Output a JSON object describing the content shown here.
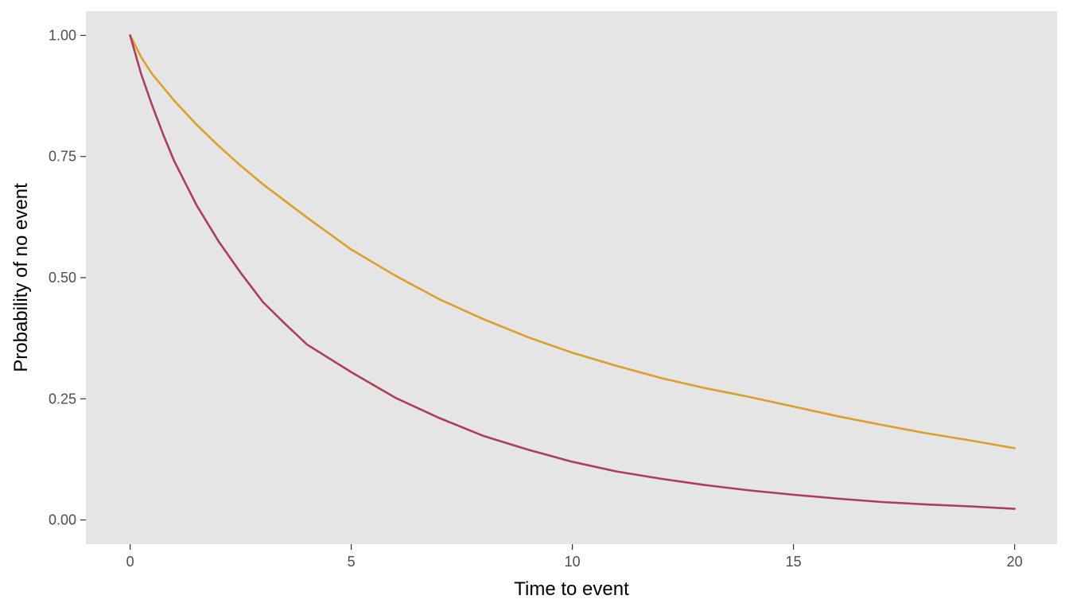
{
  "chart_data": {
    "type": "line",
    "title": "",
    "xlabel": "Time to event",
    "ylabel": "Probability of no event",
    "xlim": [
      -1,
      20.96
    ],
    "ylim": [
      -0.05,
      1.05
    ],
    "x_ticks": [
      {
        "value": 0,
        "label": "0"
      },
      {
        "value": 5,
        "label": "5"
      },
      {
        "value": 10,
        "label": "10"
      },
      {
        "value": 15,
        "label": "15"
      },
      {
        "value": 20,
        "label": "20"
      }
    ],
    "y_ticks": [
      {
        "value": 0,
        "label": "0.00"
      },
      {
        "value": 0.25,
        "label": "0.25"
      },
      {
        "value": 0.5,
        "label": "0.50"
      },
      {
        "value": 0.75,
        "label": "0.75"
      },
      {
        "value": 1,
        "label": "1.00"
      }
    ],
    "grid": false,
    "legend": "none",
    "panel_background": "#e5e5e5",
    "series": [
      {
        "color": "#daa029",
        "x": [
          0,
          0.25,
          0.5,
          1,
          1.5,
          2,
          2.5,
          3,
          4,
          5,
          6,
          7,
          8,
          9,
          10,
          11,
          12,
          13,
          14,
          15,
          16,
          17,
          18,
          19,
          20
        ],
        "y": [
          1.0,
          0.955,
          0.92,
          0.865,
          0.816,
          0.772,
          0.731,
          0.693,
          0.624,
          0.558,
          0.504,
          0.455,
          0.414,
          0.377,
          0.345,
          0.318,
          0.293,
          0.272,
          0.254,
          0.234,
          0.214,
          0.196,
          0.179,
          0.164,
          0.148
        ]
      },
      {
        "color": "#ad3e57",
        "x": [
          0,
          0.25,
          0.5,
          0.75,
          1,
          1.5,
          2,
          2.5,
          3,
          3.5,
          4,
          5,
          6,
          7,
          8,
          9,
          10,
          11,
          12,
          13,
          14,
          15,
          16,
          17,
          18,
          19,
          20
        ],
        "y": [
          1.0,
          0.92,
          0.855,
          0.795,
          0.74,
          0.65,
          0.575,
          0.51,
          0.45,
          0.405,
          0.362,
          0.305,
          0.252,
          0.21,
          0.173,
          0.145,
          0.12,
          0.1,
          0.085,
          0.072,
          0.061,
          0.052,
          0.044,
          0.037,
          0.032,
          0.028,
          0.023
        ]
      }
    ]
  }
}
